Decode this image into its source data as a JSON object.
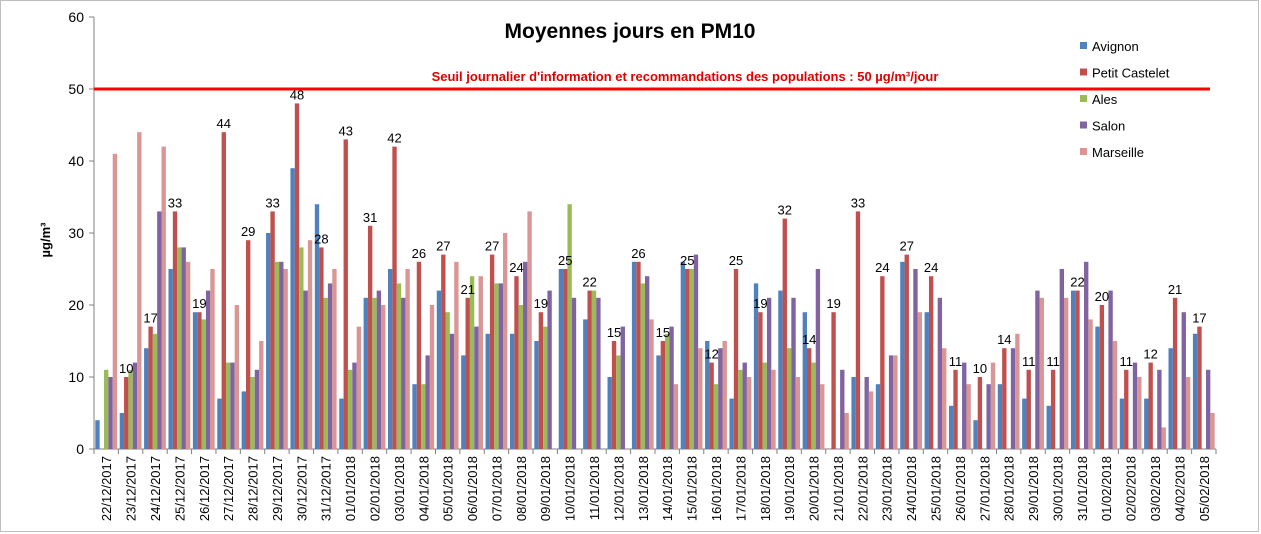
{
  "chart_data": {
    "type": "bar",
    "title": "Moyennes jours en PM10",
    "ylabel": "µg/m³",
    "ylim": [
      0,
      60
    ],
    "yticks": [
      0,
      10,
      20,
      30,
      40,
      50,
      60
    ],
    "grid": false,
    "legend_position": "right",
    "categories": [
      "22/12/2017",
      "23/12/2017",
      "24/12/2017",
      "25/12/2017",
      "26/12/2017",
      "27/12/2017",
      "28/12/2017",
      "29/12/2017",
      "30/12/2017",
      "31/12/2017",
      "01/01/2018",
      "02/01/2018",
      "03/01/2018",
      "04/01/2018",
      "05/01/2018",
      "06/01/2018",
      "07/01/2018",
      "08/01/2018",
      "09/01/2018",
      "10/01/2018",
      "11/01/2018",
      "12/01/2018",
      "13/01/2018",
      "14/01/2018",
      "15/01/2018",
      "16/01/2018",
      "17/01/2018",
      "18/01/2018",
      "19/01/2018",
      "20/01/2018",
      "21/01/2018",
      "22/01/2018",
      "23/01/2018",
      "24/01/2018",
      "25/01/2018",
      "26/01/2018",
      "27/01/2018",
      "28/01/2018",
      "29/01/2018",
      "30/01/2018",
      "31/01/2018",
      "01/02/2018",
      "02/02/2018",
      "03/02/2018",
      "04/02/2018",
      "05/02/2018"
    ],
    "series": [
      {
        "name": "Avignon",
        "color": "#4f81bd",
        "values": [
          4,
          5,
          14,
          25,
          19,
          7,
          8,
          30,
          39,
          34,
          7,
          21,
          25,
          9,
          22,
          13,
          16,
          16,
          15,
          25,
          18,
          10,
          26,
          13,
          26,
          15,
          7,
          23,
          22,
          19,
          null,
          10,
          9,
          26,
          19,
          6,
          4,
          9,
          7,
          6,
          22,
          17,
          7,
          7,
          14,
          16
        ]
      },
      {
        "name": "Petit Castelet",
        "color": "#c0504d",
        "values": [
          null,
          10,
          17,
          33,
          19,
          44,
          29,
          33,
          48,
          28,
          43,
          31,
          42,
          26,
          27,
          21,
          27,
          24,
          19,
          25,
          22,
          15,
          26,
          15,
          25,
          12,
          25,
          19,
          32,
          14,
          19,
          33,
          24,
          27,
          24,
          11,
          10,
          14,
          11,
          11,
          22,
          20,
          11,
          12,
          21,
          17
        ]
      },
      {
        "name": "Ales",
        "color": "#9bbb59",
        "values": [
          11,
          11,
          16,
          28,
          18,
          12,
          10,
          26,
          28,
          21,
          11,
          21,
          23,
          9,
          19,
          24,
          23,
          20,
          17,
          34,
          22,
          13,
          23,
          16,
          25,
          9,
          11,
          12,
          14,
          12,
          null,
          null,
          null,
          null,
          null,
          null,
          null,
          null,
          null,
          null,
          null,
          null,
          null,
          null,
          null,
          null
        ]
      },
      {
        "name": "Salon",
        "color": "#8064a2",
        "values": [
          10,
          12,
          33,
          28,
          22,
          12,
          11,
          26,
          22,
          23,
          12,
          22,
          21,
          13,
          16,
          17,
          23,
          26,
          22,
          21,
          21,
          17,
          24,
          17,
          27,
          14,
          12,
          21,
          21,
          25,
          11,
          10,
          13,
          25,
          21,
          12,
          9,
          14,
          22,
          25,
          26,
          22,
          12,
          11,
          19,
          11
        ]
      },
      {
        "name": "Marseille",
        "color": "#d99694",
        "values": [
          41,
          44,
          42,
          26,
          25,
          20,
          15,
          25,
          29,
          25,
          17,
          20,
          25,
          20,
          26,
          24,
          30,
          33,
          null,
          null,
          null,
          null,
          18,
          9,
          14,
          15,
          10,
          11,
          10,
          9,
          5,
          8,
          13,
          19,
          14,
          9,
          12,
          16,
          21,
          21,
          18,
          15,
          10,
          3,
          10,
          5
        ]
      }
    ],
    "data_labels": [
      null,
      10,
      17,
      33,
      19,
      44,
      29,
      33,
      48,
      28,
      43,
      31,
      42,
      26,
      27,
      21,
      27,
      24,
      19,
      25,
      22,
      15,
      26,
      15,
      25,
      12,
      25,
      19,
      32,
      14,
      19,
      33,
      24,
      27,
      24,
      11,
      10,
      14,
      11,
      11,
      22,
      20,
      11,
      12,
      21,
      17
    ],
    "annotations": [
      {
        "type": "horizontal-line",
        "y": 50,
        "color": "#ff0000",
        "text": "Seuil journalier d'information et recommandations des populations : 50 µg/m³/jour"
      }
    ]
  }
}
